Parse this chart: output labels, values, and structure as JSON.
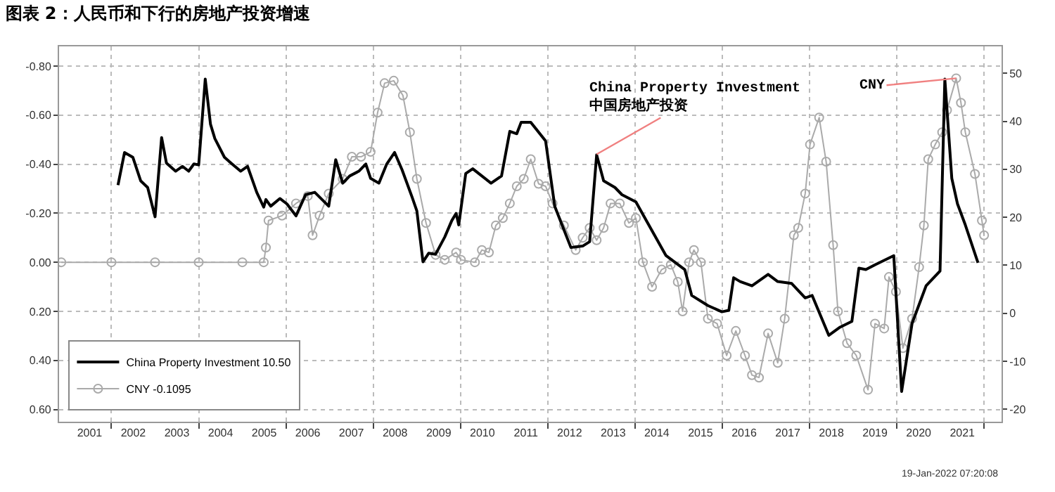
{
  "chart_data": {
    "type": "line",
    "title": "图表 2：人民币和下行的房地产投资增速",
    "legend": "bottom left",
    "grid": true,
    "series": [
      {
        "name": "China Property Investment 10.50",
        "color": "#000000",
        "axis": "y2",
        "marker": "none",
        "line_style": "solid",
        "x": [
          2002.15,
          2002.3,
          2002.49,
          2002.67,
          2002.83,
          2003.0,
          2003.15,
          2003.26,
          2003.47,
          2003.63,
          2003.77,
          2003.89,
          2004.0,
          2004.15,
          2004.27,
          2004.37,
          2004.59,
          2004.74,
          2004.96,
          2005.12,
          2005.33,
          2005.49,
          2005.54,
          2005.65,
          2005.86,
          2006.02,
          2006.23,
          2006.45,
          2006.66,
          2006.98,
          2007.14,
          2007.3,
          2007.46,
          2007.67,
          2007.83,
          2007.94,
          2008.13,
          2008.31,
          2008.49,
          2008.66,
          2008.89,
          2009.0,
          2009.14,
          2009.27,
          2009.43,
          2009.64,
          2009.8,
          2009.9,
          2009.96,
          2010.12,
          2010.28,
          2010.49,
          2010.7,
          2010.94,
          2011.13,
          2011.29,
          2011.39,
          2011.61,
          2011.95,
          2012.16,
          2012.37,
          2012.53,
          2012.8,
          2012.96,
          2013.12,
          2013.28,
          2013.54,
          2013.7,
          2014.02,
          2014.29,
          2014.71,
          2015.14,
          2015.3,
          2015.67,
          2015.99,
          2016.15,
          2016.26,
          2016.41,
          2016.68,
          2017.05,
          2017.27,
          2017.59,
          2017.9,
          2018.06,
          2018.44,
          2018.7,
          2018.97,
          2019.13,
          2019.29,
          2019.5,
          2019.93,
          2020.11,
          2020.35,
          2020.67,
          2020.99,
          2021.1,
          2021.26,
          2021.39,
          2021.57,
          2021.86
        ],
        "values": [
          26.7,
          33.5,
          32.5,
          27.6,
          26.2,
          20.1,
          36.6,
          31.3,
          29.6,
          30.6,
          29.6,
          31.1,
          30.9,
          48.8,
          39.4,
          36.4,
          32.5,
          31.3,
          29.6,
          30.6,
          25.2,
          22.1,
          23.7,
          22.3,
          23.9,
          22.8,
          20.3,
          24.7,
          25.2,
          22.3,
          32.0,
          27.1,
          28.6,
          29.6,
          31.1,
          28.1,
          27.1,
          31.1,
          33.5,
          29.9,
          24.2,
          21.3,
          10.7,
          12.5,
          12.3,
          15.9,
          19.3,
          20.8,
          18.4,
          29.1,
          30.1,
          28.6,
          27.1,
          28.6,
          37.9,
          37.4,
          39.8,
          39.8,
          35.9,
          22.3,
          17.4,
          13.7,
          14.0,
          14.9,
          33.0,
          27.6,
          26.2,
          24.7,
          23.2,
          18.8,
          12.0,
          9.1,
          3.7,
          1.6,
          0.3,
          0.6,
          7.4,
          6.6,
          5.7,
          8.1,
          6.6,
          6.2,
          3.2,
          3.7,
          -4.6,
          -2.9,
          -1.7,
          9.4,
          9.1,
          10.1,
          12.0,
          -16.3,
          -2.1,
          5.7,
          8.8,
          48.8,
          28.1,
          22.8,
          18.4,
          10.5
        ]
      },
      {
        "name": "CNY -0.1095",
        "color": "#aaaaaa",
        "axis": "y",
        "marker": "circle",
        "line_style": "solid",
        "x": [
          2000.85,
          2002.0,
          2003.0,
          2004.0,
          2005.0,
          2005.49,
          2005.54,
          2005.6,
          2005.91,
          2006.23,
          2006.5,
          2006.61,
          2006.77,
          2006.98,
          2007.3,
          2007.51,
          2007.72,
          2007.94,
          2008.1,
          2008.26,
          2008.47,
          2008.68,
          2008.84,
          2009.0,
          2009.21,
          2009.43,
          2009.64,
          2009.9,
          2010.01,
          2010.33,
          2010.49,
          2010.65,
          2010.81,
          2010.97,
          2011.13,
          2011.29,
          2011.45,
          2011.61,
          2011.79,
          2011.95,
          2012.11,
          2012.37,
          2012.64,
          2012.8,
          2012.96,
          2013.12,
          2013.28,
          2013.44,
          2013.65,
          2013.86,
          2014.02,
          2014.18,
          2014.39,
          2014.61,
          2014.82,
          2014.98,
          2015.09,
          2015.24,
          2015.35,
          2015.51,
          2015.67,
          2015.88,
          2016.1,
          2016.31,
          2016.52,
          2016.68,
          2016.84,
          2017.05,
          2017.27,
          2017.43,
          2017.64,
          2017.74,
          2017.9,
          2018.01,
          2018.22,
          2018.38,
          2018.54,
          2018.65,
          2018.86,
          2019.07,
          2019.34,
          2019.5,
          2019.71,
          2019.82,
          2019.98,
          2020.14,
          2020.35,
          2020.51,
          2020.62,
          2020.72,
          2020.88,
          2021.04,
          2021.15,
          2021.36,
          2021.47,
          2021.57,
          2021.79,
          2021.95,
          2022.0
        ],
        "values": [
          0,
          0,
          0,
          0,
          0,
          0,
          -0.06,
          -0.17,
          -0.19,
          -0.24,
          -0.27,
          -0.11,
          -0.19,
          -0.28,
          -0.34,
          -0.43,
          -0.43,
          -0.45,
          -0.61,
          -0.73,
          -0.74,
          -0.68,
          -0.53,
          -0.34,
          -0.16,
          -0.03,
          -0.01,
          -0.04,
          -0.01,
          0.0,
          -0.05,
          -0.04,
          -0.15,
          -0.18,
          -0.24,
          -0.31,
          -0.34,
          -0.42,
          -0.32,
          -0.31,
          -0.24,
          -0.15,
          -0.05,
          -0.1,
          -0.14,
          -0.09,
          -0.14,
          -0.24,
          -0.24,
          -0.16,
          -0.18,
          0.0,
          0.1,
          0.03,
          0.01,
          0.08,
          0.2,
          0.0,
          -0.05,
          0.0,
          0.23,
          0.25,
          0.38,
          0.28,
          0.38,
          0.46,
          0.47,
          0.29,
          0.41,
          0.23,
          -0.11,
          -0.14,
          -0.28,
          -0.48,
          -0.59,
          -0.41,
          -0.07,
          0.2,
          0.33,
          0.38,
          0.52,
          0.25,
          0.27,
          0.06,
          0.12,
          0.35,
          0.23,
          0.02,
          -0.15,
          -0.42,
          -0.48,
          -0.53,
          -0.62,
          -0.75,
          -0.65,
          -0.53,
          -0.36,
          -0.17,
          -0.11
        ]
      }
    ],
    "xlim": [
      2000.8,
      2022.4
    ],
    "xticks": [
      {
        "value": 2001.5,
        "label": "2001"
      },
      {
        "value": 2002.5,
        "label": "2002"
      },
      {
        "value": 2003.5,
        "label": "2003"
      },
      {
        "value": 2004.5,
        "label": "2004"
      },
      {
        "value": 2005.5,
        "label": "2005"
      },
      {
        "value": 2006.5,
        "label": "2006"
      },
      {
        "value": 2007.5,
        "label": "2007"
      },
      {
        "value": 2008.5,
        "label": "2008"
      },
      {
        "value": 2009.5,
        "label": "2009"
      },
      {
        "value": 2010.5,
        "label": "2010"
      },
      {
        "value": 2011.5,
        "label": "2011"
      },
      {
        "value": 2012.5,
        "label": "2012"
      },
      {
        "value": 2013.5,
        "label": "2013"
      },
      {
        "value": 2014.5,
        "label": "2014"
      },
      {
        "value": 2015.5,
        "label": "2015"
      },
      {
        "value": 2016.5,
        "label": "2016"
      },
      {
        "value": 2017.5,
        "label": "2017"
      },
      {
        "value": 2018.5,
        "label": "2018"
      },
      {
        "value": 2019.5,
        "label": "2019"
      },
      {
        "value": 2020.5,
        "label": "2020"
      },
      {
        "value": 2021.5,
        "label": "2021"
      },
      {
        "value": 2002,
        "label": null
      },
      {
        "value": 2004,
        "label": null
      },
      {
        "value": 2006,
        "label": null
      },
      {
        "value": 2008,
        "label": null
      },
      {
        "value": 2010,
        "label": null
      },
      {
        "value": 2012,
        "label": null
      },
      {
        "value": 2014,
        "label": null
      },
      {
        "value": 2016,
        "label": null
      },
      {
        "value": 2018,
        "label": null
      },
      {
        "value": 2020,
        "label": null
      },
      {
        "value": 2022,
        "label": null
      }
    ],
    "ylim": [
      0.65,
      -0.88
    ],
    "yticks": [
      {
        "value": -0.8,
        "label": "-0.80"
      },
      {
        "value": -0.6,
        "label": "-0.60"
      },
      {
        "value": -0.4,
        "label": "-0.40"
      },
      {
        "value": -0.2,
        "label": "-0.20"
      },
      {
        "value": 0,
        "label": "0.00"
      },
      {
        "value": 0.2,
        "label": "0.20"
      },
      {
        "value": 0.4,
        "label": "0.40"
      },
      {
        "value": 0.6,
        "label": "0.60"
      }
    ],
    "y2lim": [
      -22.6,
      55.6
    ],
    "y2ticks": [
      -20,
      -10,
      0,
      10,
      20,
      30,
      40,
      50
    ],
    "annotations": [
      {
        "text": "China Property Investment\n中国房地产投资",
        "x": 2013.12,
        "y": -0.44
      },
      {
        "text": "CNY",
        "x": 2021.36,
        "y": -0.75
      },
      "19-Jan-2022 07:20:08"
    ]
  }
}
